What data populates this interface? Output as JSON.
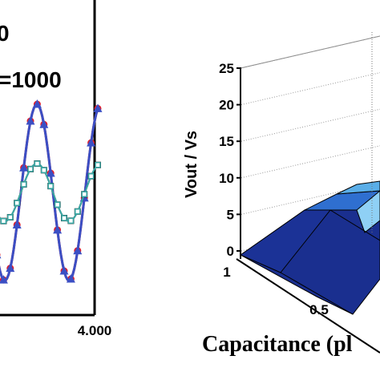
{
  "left_panel": {
    "text_top": "0",
    "text_param": "=1000",
    "x_tick_label": "4.000",
    "series": [
      {
        "marker": "circle",
        "color": "#e0202e",
        "amplitude": "large"
      },
      {
        "marker": "triangle",
        "color": "#3b4fc4",
        "amplitude": "large"
      },
      {
        "marker": "square",
        "color": "#000000",
        "amplitude": "small"
      },
      {
        "marker": "open-square",
        "color": "#3aa9a6",
        "amplitude": "small"
      }
    ]
  },
  "chart_data": [
    {
      "type": "line",
      "panel": "left",
      "note_visible": [
        "0",
        "=1000"
      ],
      "x_ticks": [
        "4.000"
      ],
      "series": [
        {
          "values": [
            0.8,
            -0.9,
            1.0,
            -1.0,
            0.9
          ]
        },
        {
          "values": [
            0.75,
            -0.85,
            0.95,
            -0.95,
            0.85
          ]
        },
        {
          "values": [
            0.35,
            -0.4,
            0.4,
            -0.4,
            0.35
          ]
        },
        {
          "values": [
            0.3,
            -0.35,
            0.35,
            -0.35,
            0.3
          ]
        }
      ]
    },
    {
      "type": "surface",
      "panel": "right",
      "zlabel": "Vout / Vs",
      "xlabel": "Capacitance (pl",
      "z_ticks": [
        "0",
        "5",
        "10",
        "15",
        "20",
        "25"
      ],
      "x_ticks": [
        "1",
        "0.5"
      ],
      "zlim": [
        0,
        25
      ],
      "grid": true,
      "surface_colors": [
        "#1a2f8f",
        "#2f6fd0",
        "#5aaee8",
        "#8fd0f5"
      ]
    }
  ]
}
